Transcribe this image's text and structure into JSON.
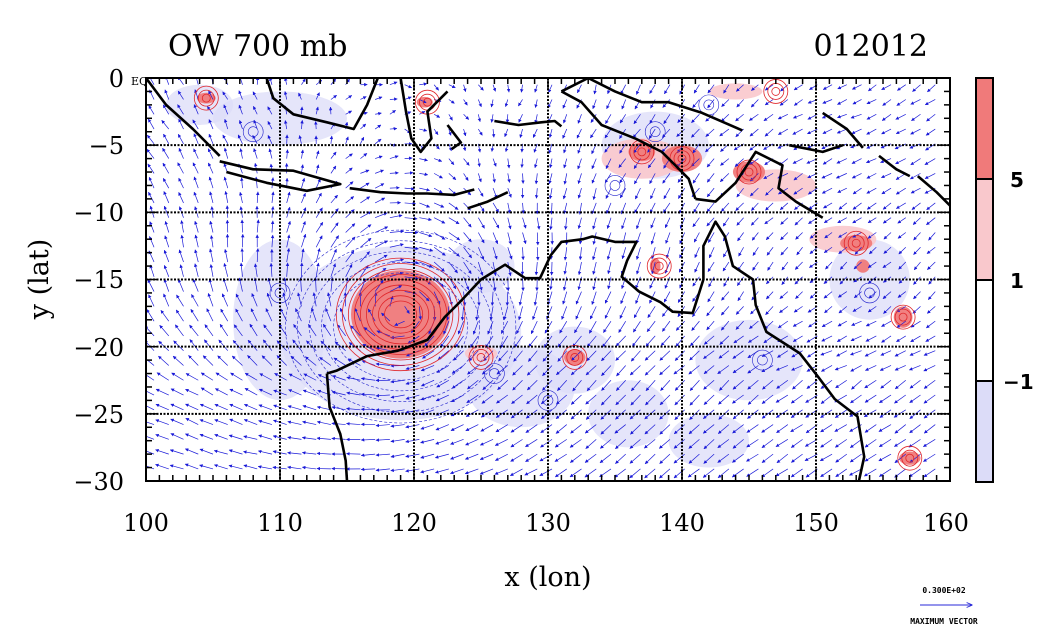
{
  "chart_data": {
    "type": "heatmap",
    "title": "OW 700 mb",
    "time_label": "012012",
    "xlabel": "x (lon)",
    "ylabel": "y (lat)",
    "xlim": [
      100,
      160
    ],
    "ylim": [
      -30,
      0
    ],
    "x_ticks": [
      100,
      110,
      120,
      130,
      140,
      150,
      160
    ],
    "y_ticks": [
      0,
      -5,
      -10,
      -15,
      -20,
      -25,
      -30
    ],
    "y_tick_labels": [
      "0",
      "−5",
      "−10",
      "−15",
      "−20",
      "−25",
      "−30"
    ],
    "x_tick_labels": [
      "100",
      "110",
      "120",
      "130",
      "140",
      "150",
      "160"
    ],
    "eq_label": "EQ",
    "gridlines": "dashed, every 10 degrees",
    "colorbar": {
      "levels": [
        -1,
        1,
        5
      ],
      "level_labels": [
        "−1",
        "1",
        "5"
      ],
      "colors": [
        "#dcdcf8",
        "#ffffff",
        "#f9c8cc",
        "#f07a7a"
      ],
      "placement": "right"
    },
    "reference_vector": {
      "value_label": "0.300E+02",
      "caption": "MAXIMUM VECTOR"
    },
    "vector_color": "#1a1ad8",
    "contour_colors": {
      "positive": "#e0262a",
      "negative": "#2222cc"
    },
    "features": [
      {
        "name": "strong positive OW core (cyclone)",
        "lon": 119,
        "lat": -17.5,
        "level": "above 5"
      },
      {
        "name": "negative OW ring",
        "lon": 119,
        "lat": -18.5,
        "level": "below -1"
      },
      {
        "name": "positive patches near New Guinea",
        "lon": 139,
        "lat": -5,
        "level": "above 5"
      }
    ]
  }
}
